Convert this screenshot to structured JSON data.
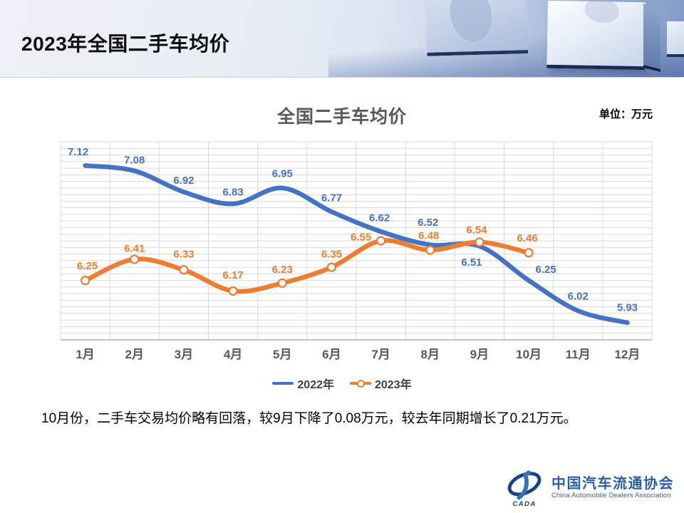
{
  "slide": {
    "title": "2023年全国二手车均价"
  },
  "chart": {
    "unit_label": "单位：万元"
  },
  "chart_data": {
    "type": "line",
    "title": "全国二手车均价",
    "xlabel": "",
    "ylabel": "",
    "categories": [
      "1月",
      "2月",
      "3月",
      "4月",
      "5月",
      "6月",
      "7月",
      "8月",
      "9月",
      "10月",
      "11月",
      "12月"
    ],
    "series": [
      {
        "name": "2022年",
        "color": "#4472C4",
        "smooth": true,
        "markers": false,
        "values": [
          7.12,
          7.08,
          6.92,
          6.83,
          6.95,
          6.77,
          6.62,
          6.52,
          6.51,
          6.25,
          6.02,
          5.93
        ],
        "label_offsets": [
          [
            -10,
            -20
          ],
          [
            0,
            -16
          ],
          [
            0,
            -17
          ],
          [
            0,
            -17
          ],
          [
            0,
            -21
          ],
          [
            0,
            -20
          ],
          [
            -2,
            -20
          ],
          [
            -3,
            -32
          ],
          [
            -11,
            22
          ],
          [
            24,
            -16
          ],
          [
            0,
            -21
          ],
          [
            0,
            -22
          ]
        ]
      },
      {
        "name": "2023年",
        "color": "#ED7D31",
        "smooth": true,
        "markers": true,
        "marker_fill": "#FFFFFF",
        "values": [
          6.25,
          6.41,
          6.33,
          6.17,
          6.23,
          6.35,
          6.55,
          6.48,
          6.54,
          6.46
        ],
        "label_offsets": [
          [
            3,
            -21
          ],
          [
            0,
            -16
          ],
          [
            0,
            -23
          ],
          [
            0,
            -23
          ],
          [
            0,
            -20
          ],
          [
            0,
            -19
          ],
          [
            -28,
            -6
          ],
          [
            -2,
            -21
          ],
          [
            -4,
            -18
          ],
          [
            -2,
            -21
          ]
        ]
      }
    ],
    "ylim": [
      5.8,
      7.3
    ],
    "minor_unit": 0.05,
    "grid": true,
    "grid_color": "#D9D9D9",
    "axis_color": "#ADADAD",
    "tick_color": "#595959",
    "label_format": "0.00",
    "legend_position": "bottom"
  },
  "commentary": {
    "text": "10月份，二手车交易均价略有回落，较9月下降了0.08万元，较去年同期增长了0.21万元。"
  },
  "logo": {
    "cn": "中国汽车流通协会",
    "en": "China Automobile Dealers Association",
    "emblem_text": "CADA"
  }
}
